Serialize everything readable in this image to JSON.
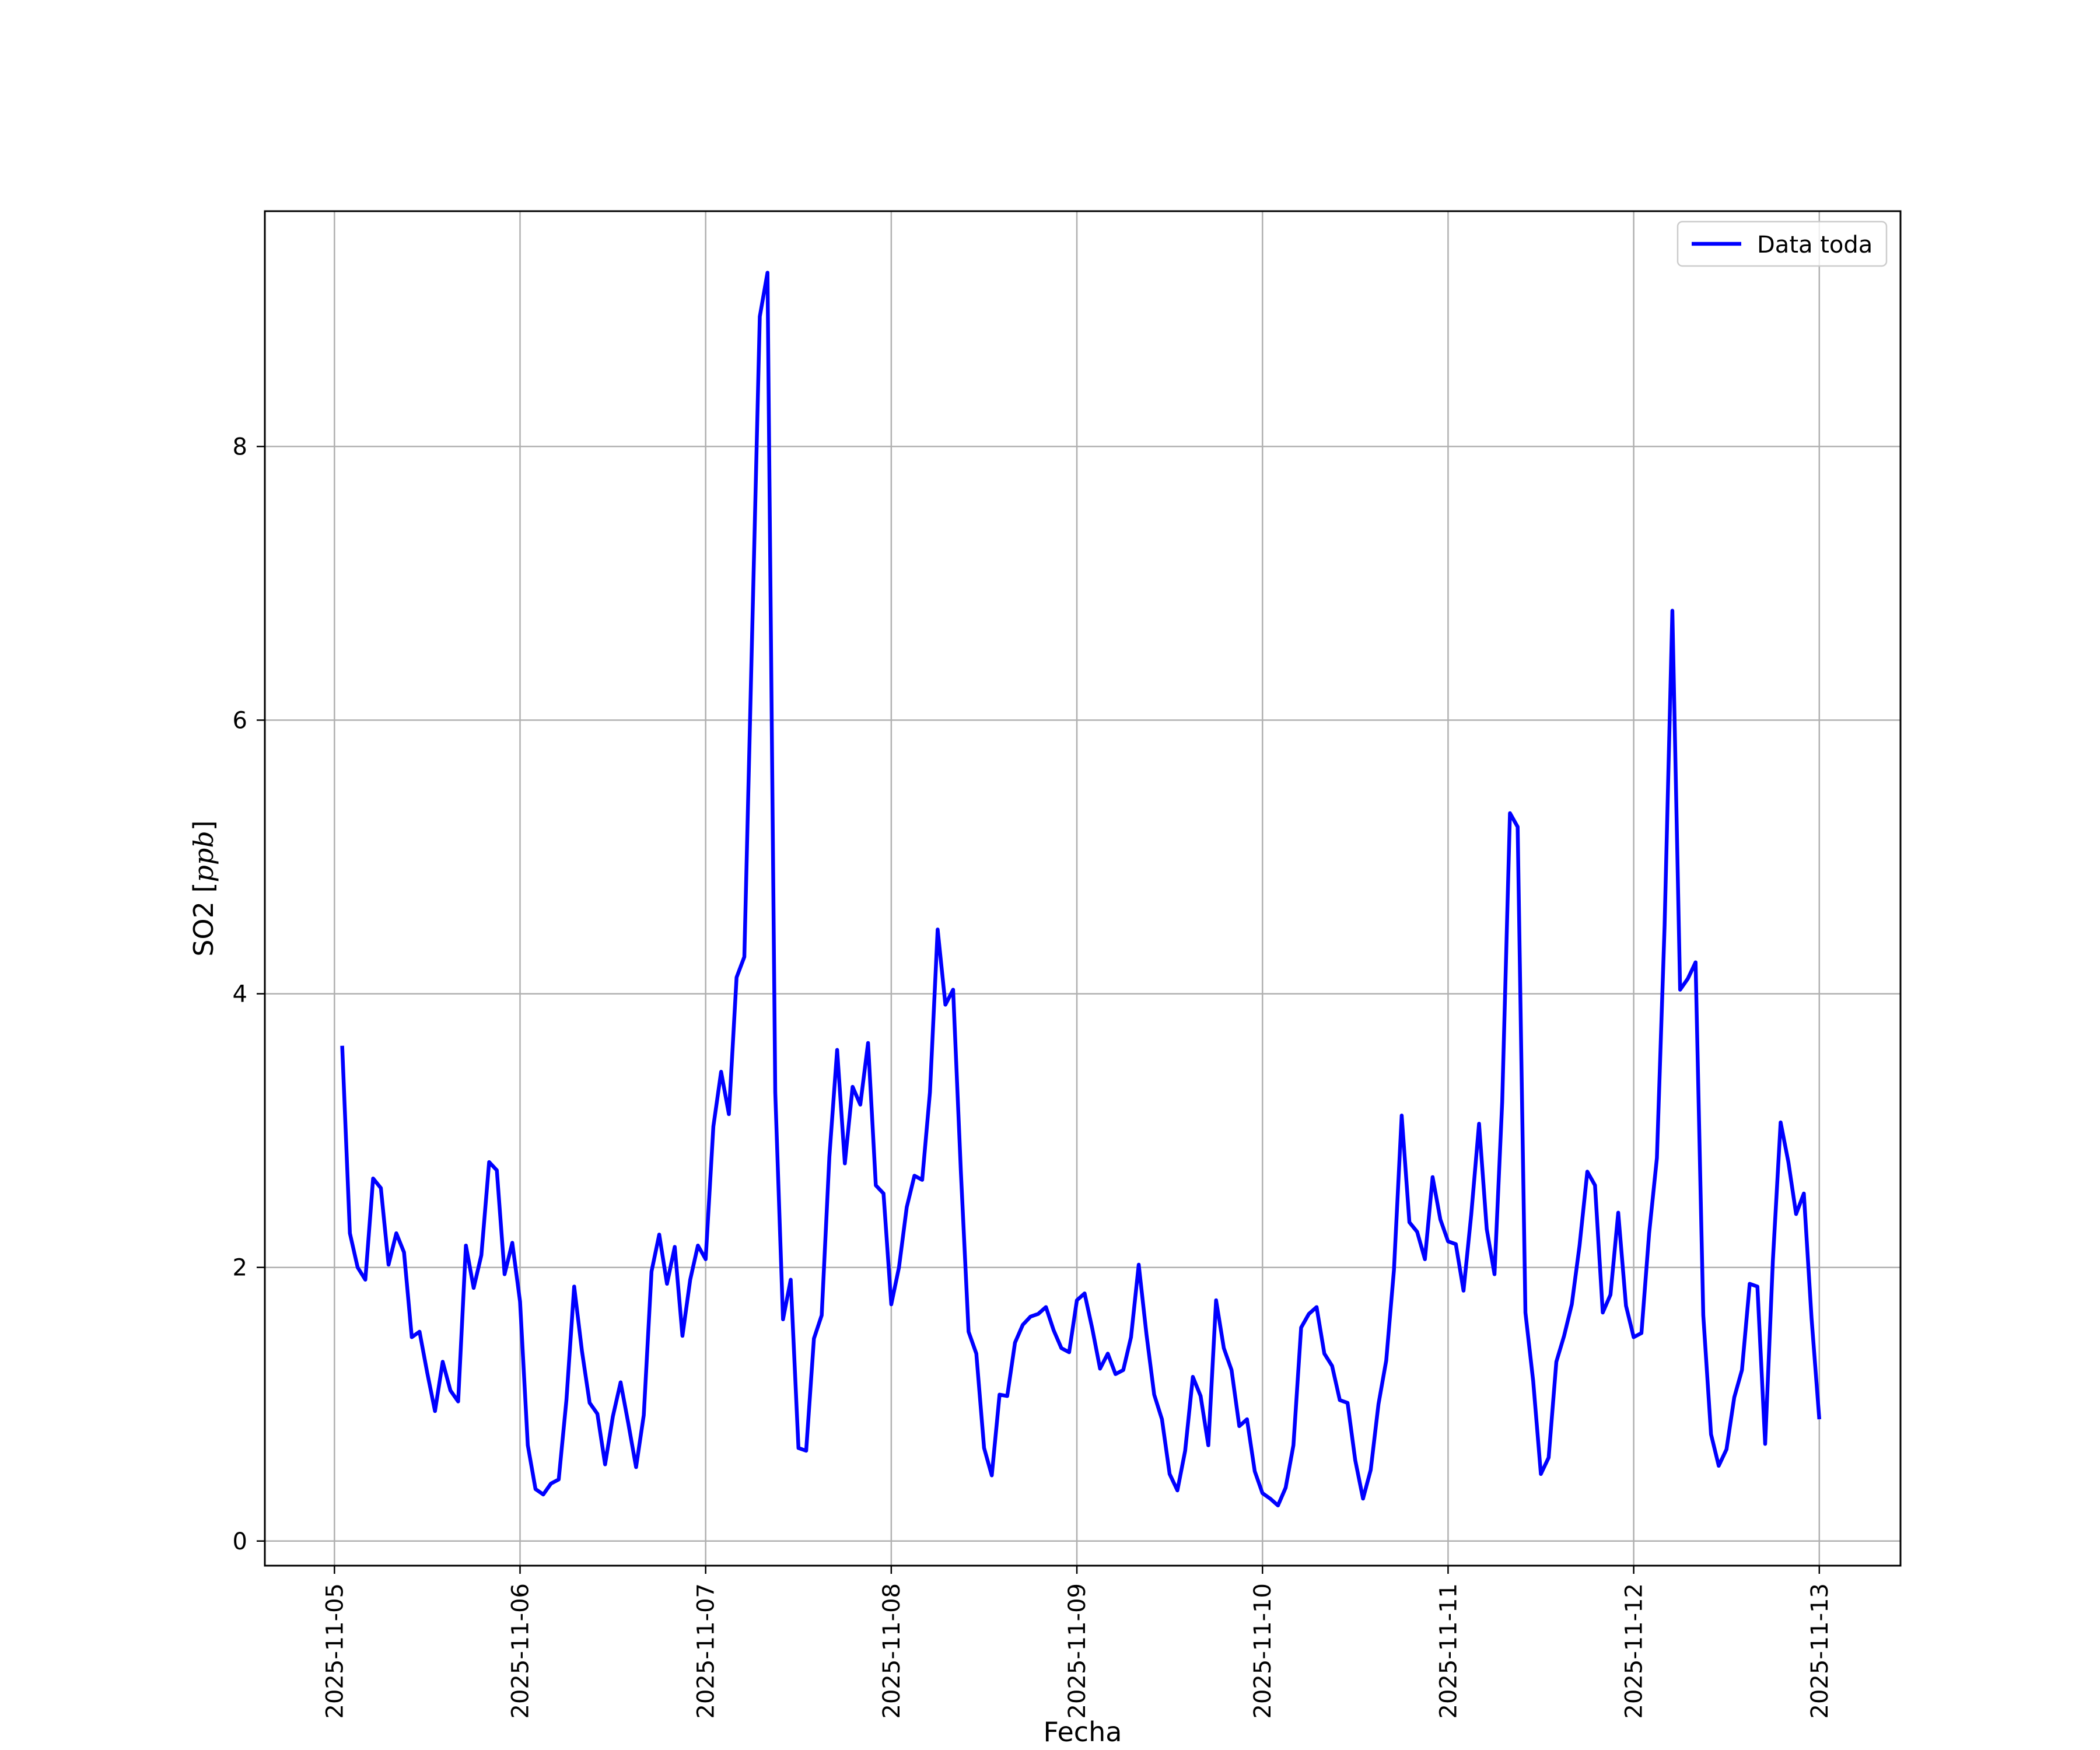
{
  "chart_data": {
    "type": "line",
    "title": "",
    "xlabel": "Fecha",
    "ylabel": "SO2 [",
    "ylabel_unit": "ppb",
    "ylabel_close": "]",
    "xlim": [
      "2025-11-04 15:00",
      "2025-11-13 10:30"
    ],
    "ylim": [
      -0.18,
      9.72
    ],
    "x_ticks": [
      "2025-11-05",
      "2025-11-06",
      "2025-11-07",
      "2025-11-08",
      "2025-11-09",
      "2025-11-10",
      "2025-11-11",
      "2025-11-12",
      "2025-11-13"
    ],
    "y_ticks": [
      0,
      2,
      4,
      6,
      8
    ],
    "grid": true,
    "legend_position": "upper right",
    "series": [
      {
        "name": "Data toda",
        "color": "#0000ff",
        "x": [
          "2025-11-05 01:00",
          "2025-11-05 02:00",
          "2025-11-05 03:00",
          "2025-11-05 04:00",
          "2025-11-05 05:00",
          "2025-11-05 06:00",
          "2025-11-05 07:00",
          "2025-11-05 08:00",
          "2025-11-05 09:00",
          "2025-11-05 10:00",
          "2025-11-05 11:00",
          "2025-11-05 12:00",
          "2025-11-05 13:00",
          "2025-11-05 14:00",
          "2025-11-05 15:00",
          "2025-11-05 16:00",
          "2025-11-05 17:00",
          "2025-11-05 18:00",
          "2025-11-05 19:00",
          "2025-11-05 20:00",
          "2025-11-05 21:00",
          "2025-11-05 22:00",
          "2025-11-05 23:00",
          "2025-11-06 00:00",
          "2025-11-06 01:00",
          "2025-11-06 02:00",
          "2025-11-06 03:00",
          "2025-11-06 04:00",
          "2025-11-06 05:00",
          "2025-11-06 06:00",
          "2025-11-06 07:00",
          "2025-11-06 08:00",
          "2025-11-06 09:00",
          "2025-11-06 10:00",
          "2025-11-06 11:00",
          "2025-11-06 12:00",
          "2025-11-06 13:00",
          "2025-11-06 14:00",
          "2025-11-06 15:00",
          "2025-11-06 16:00",
          "2025-11-06 17:00",
          "2025-11-06 18:00",
          "2025-11-06 19:00",
          "2025-11-06 20:00",
          "2025-11-06 21:00",
          "2025-11-06 22:00",
          "2025-11-06 23:00",
          "2025-11-07 00:00",
          "2025-11-07 01:00",
          "2025-11-07 02:00",
          "2025-11-07 03:00",
          "2025-11-07 04:00",
          "2025-11-07 05:00",
          "2025-11-07 06:00",
          "2025-11-07 07:00",
          "2025-11-07 08:00",
          "2025-11-07 09:00",
          "2025-11-07 10:00",
          "2025-11-07 11:00",
          "2025-11-07 12:00",
          "2025-11-07 13:00",
          "2025-11-07 14:00",
          "2025-11-07 15:00",
          "2025-11-07 16:00",
          "2025-11-07 17:00",
          "2025-11-07 18:00",
          "2025-11-07 19:00",
          "2025-11-07 20:00",
          "2025-11-07 21:00",
          "2025-11-07 22:00",
          "2025-11-07 23:00",
          "2025-11-08 00:00",
          "2025-11-08 01:00",
          "2025-11-08 02:00",
          "2025-11-08 03:00",
          "2025-11-08 04:00",
          "2025-11-08 05:00",
          "2025-11-08 06:00",
          "2025-11-08 07:00",
          "2025-11-08 08:00",
          "2025-11-08 09:00",
          "2025-11-08 10:00",
          "2025-11-08 11:00",
          "2025-11-08 12:00",
          "2025-11-08 13:00",
          "2025-11-08 14:00",
          "2025-11-08 15:00",
          "2025-11-08 16:00",
          "2025-11-08 17:00",
          "2025-11-08 18:00",
          "2025-11-08 19:00",
          "2025-11-08 20:00",
          "2025-11-08 21:00",
          "2025-11-08 22:00",
          "2025-11-08 23:00",
          "2025-11-09 00:00",
          "2025-11-09 01:00",
          "2025-11-09 02:00",
          "2025-11-09 03:00",
          "2025-11-09 04:00",
          "2025-11-09 05:00",
          "2025-11-09 06:00",
          "2025-11-09 07:00",
          "2025-11-09 08:00",
          "2025-11-09 09:00",
          "2025-11-09 10:00",
          "2025-11-09 11:00",
          "2025-11-09 12:00",
          "2025-11-09 13:00",
          "2025-11-09 14:00",
          "2025-11-09 15:00",
          "2025-11-09 16:00",
          "2025-11-09 17:00",
          "2025-11-09 18:00",
          "2025-11-09 19:00",
          "2025-11-09 20:00",
          "2025-11-09 21:00",
          "2025-11-09 22:00",
          "2025-11-09 23:00",
          "2025-11-10 00:00",
          "2025-11-10 01:00",
          "2025-11-10 02:00",
          "2025-11-10 03:00",
          "2025-11-10 04:00",
          "2025-11-10 05:00",
          "2025-11-10 06:00",
          "2025-11-10 07:00",
          "2025-11-10 08:00",
          "2025-11-10 09:00",
          "2025-11-10 10:00",
          "2025-11-10 11:00",
          "2025-11-10 12:00",
          "2025-11-10 13:00",
          "2025-11-10 14:00",
          "2025-11-10 15:00",
          "2025-11-10 16:00",
          "2025-11-10 17:00",
          "2025-11-10 18:00",
          "2025-11-10 19:00",
          "2025-11-10 20:00",
          "2025-11-10 21:00",
          "2025-11-10 22:00",
          "2025-11-10 23:00",
          "2025-11-11 00:00",
          "2025-11-11 01:00",
          "2025-11-11 02:00",
          "2025-11-11 03:00",
          "2025-11-11 04:00",
          "2025-11-11 05:00",
          "2025-11-11 06:00",
          "2025-11-11 07:00",
          "2025-11-11 08:00",
          "2025-11-11 09:00",
          "2025-11-11 10:00",
          "2025-11-11 11:00",
          "2025-11-11 12:00",
          "2025-11-11 13:00",
          "2025-11-11 14:00",
          "2025-11-11 15:00",
          "2025-11-11 16:00",
          "2025-11-11 17:00",
          "2025-11-11 18:00",
          "2025-11-11 19:00",
          "2025-11-11 20:00",
          "2025-11-11 21:00",
          "2025-11-11 22:00",
          "2025-11-11 23:00",
          "2025-11-12 00:00",
          "2025-11-12 01:00",
          "2025-11-12 02:00",
          "2025-11-12 03:00",
          "2025-11-12 04:00",
          "2025-11-12 05:00",
          "2025-11-12 06:00",
          "2025-11-12 07:00",
          "2025-11-12 08:00",
          "2025-11-12 09:00",
          "2025-11-12 10:00",
          "2025-11-12 11:00",
          "2025-11-12 12:00",
          "2025-11-12 13:00",
          "2025-11-12 14:00",
          "2025-11-12 15:00",
          "2025-11-12 16:00",
          "2025-11-12 17:00",
          "2025-11-12 18:00",
          "2025-11-12 19:00",
          "2025-11-12 20:00",
          "2025-11-12 21:00",
          "2025-11-12 22:00",
          "2025-11-12 23:00",
          "2025-11-13 00:00"
        ],
        "y": [
          3.62,
          2.25,
          2.0,
          1.91,
          2.65,
          2.58,
          2.02,
          2.25,
          2.11,
          1.49,
          1.53,
          1.23,
          0.95,
          1.31,
          1.1,
          1.02,
          2.16,
          1.85,
          2.09,
          2.77,
          2.71,
          1.95,
          2.18,
          1.75,
          0.7,
          0.38,
          0.34,
          0.42,
          0.45,
          1.03,
          1.86,
          1.39,
          1.01,
          0.93,
          0.56,
          0.91,
          1.16,
          0.86,
          0.54,
          0.92,
          1.97,
          2.24,
          1.88,
          2.15,
          1.5,
          1.91,
          2.16,
          2.06,
          3.03,
          3.43,
          3.12,
          4.12,
          4.27,
          6.6,
          8.95,
          9.27,
          3.28,
          1.62,
          1.91,
          0.68,
          0.66,
          1.48,
          1.65,
          2.81,
          3.59,
          2.76,
          3.32,
          3.19,
          3.64,
          2.6,
          2.54,
          1.73,
          2.0,
          2.44,
          2.67,
          2.64,
          3.28,
          4.47,
          3.92,
          4.03,
          2.7,
          1.53,
          1.37,
          0.68,
          0.48,
          1.07,
          1.06,
          1.45,
          1.58,
          1.64,
          1.66,
          1.71,
          1.54,
          1.41,
          1.38,
          1.76,
          1.81,
          1.55,
          1.26,
          1.37,
          1.22,
          1.25,
          1.49,
          2.02,
          1.51,
          1.07,
          0.89,
          0.49,
          0.37,
          0.66,
          1.2,
          1.06,
          0.7,
          1.76,
          1.41,
          1.25,
          0.84,
          0.89,
          0.51,
          0.35,
          0.31,
          0.26,
          0.39,
          0.7,
          1.56,
          1.66,
          1.71,
          1.37,
          1.28,
          1.03,
          1.01,
          0.59,
          0.31,
          0.52,
          1.0,
          1.32,
          1.98,
          3.11,
          2.33,
          2.26,
          2.06,
          2.66,
          2.35,
          2.19,
          2.17,
          1.83,
          2.39,
          3.05,
          2.28,
          1.95,
          3.21,
          5.32,
          5.22,
          1.67,
          1.17,
          0.49,
          0.61,
          1.31,
          1.5,
          1.73,
          2.16,
          2.7,
          2.6,
          1.67,
          1.8,
          2.4,
          1.72,
          1.49,
          1.52,
          2.25,
          2.8,
          4.5,
          6.8,
          4.03,
          4.11,
          4.23,
          1.65,
          0.78,
          0.55,
          0.67,
          1.05,
          1.25,
          1.88,
          1.86,
          0.71,
          2.05,
          3.06,
          2.77,
          2.39,
          2.54,
          1.63,
          0.89
        ]
      }
    ]
  }
}
